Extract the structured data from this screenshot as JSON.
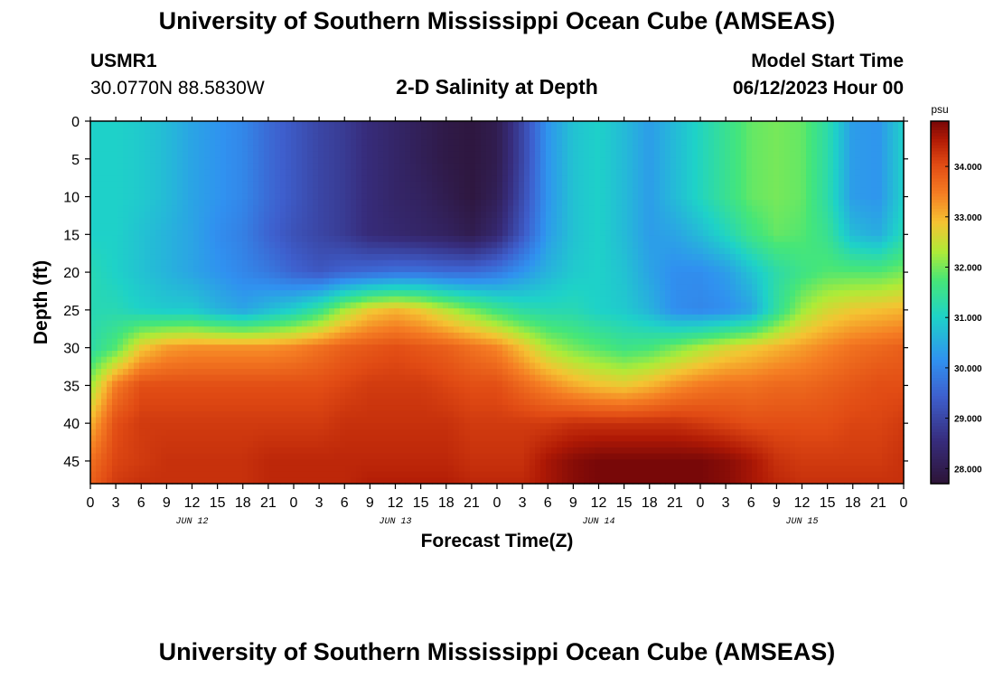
{
  "header": {
    "title": "University of Southern Mississippi Ocean Cube (AMSEAS)",
    "station_id": "USMR1",
    "coordinates": "30.0770N  88.5830W",
    "plot_title": "2-D Salinity at Depth",
    "model_start_label": "Model Start Time",
    "model_start_value": "06/12/2023 Hour 00"
  },
  "footer": {
    "title": "University of Southern Mississippi Ocean Cube (AMSEAS)"
  },
  "colors": {
    "background": "#ffffff",
    "axis": "#000000"
  },
  "chart_data": {
    "type": "heatmap",
    "title": "2-D Salinity at Depth",
    "xlabel": "Forecast Time(Z)",
    "ylabel": "Depth (ft)",
    "x_hours": [
      0,
      3,
      6,
      9,
      12,
      15,
      18,
      21,
      24,
      27,
      30,
      33,
      36,
      39,
      42,
      45,
      48,
      51,
      54,
      57,
      60,
      63,
      66,
      69,
      72,
      75,
      78,
      81,
      84,
      87,
      90,
      93,
      96
    ],
    "x_tick_labels": [
      "0",
      "3",
      "6",
      "9",
      "12",
      "15",
      "18",
      "21",
      "0",
      "3",
      "6",
      "9",
      "12",
      "15",
      "18",
      "21",
      "0",
      "3",
      "6",
      "9",
      "12",
      "15",
      "18",
      "21",
      "0",
      "3",
      "6",
      "9",
      "12",
      "15",
      "18",
      "21",
      "0"
    ],
    "date_labels": [
      {
        "text": "JUN 12",
        "hour": 12
      },
      {
        "text": "JUN 13",
        "hour": 36
      },
      {
        "text": "JUN 14",
        "hour": 60
      },
      {
        "text": "JUN 15",
        "hour": 84
      }
    ],
    "xlim": [
      0,
      96
    ],
    "ylim": [
      0,
      48
    ],
    "y_ticks": [
      0,
      5,
      10,
      15,
      20,
      25,
      30,
      35,
      40,
      45
    ],
    "y_tick_labels": [
      "0",
      "5",
      "10",
      "15",
      "20",
      "25",
      "30",
      "35",
      "40",
      "45"
    ],
    "depths_ft": [
      0,
      5,
      10,
      15,
      20,
      25,
      30,
      35,
      40,
      45,
      48
    ],
    "salinity_psu": [
      [
        31.0,
        31.0,
        31.0,
        31.0,
        31.2,
        31.2,
        31.3,
        32.2,
        33.0,
        33.6,
        33.8
      ],
      [
        31.0,
        31.0,
        31.0,
        31.0,
        31.0,
        31.2,
        31.8,
        33.5,
        34.0,
        34.1,
        34.2
      ],
      [
        30.9,
        30.9,
        30.9,
        30.8,
        30.8,
        31.0,
        32.8,
        34.0,
        34.2,
        34.2,
        34.3
      ],
      [
        30.7,
        30.7,
        30.7,
        30.6,
        30.6,
        30.9,
        33.2,
        34.0,
        34.2,
        34.3,
        34.3
      ],
      [
        30.4,
        30.4,
        30.4,
        30.4,
        30.4,
        30.9,
        33.3,
        34.0,
        34.2,
        34.3,
        34.3
      ],
      [
        30.2,
        30.2,
        30.2,
        30.1,
        30.2,
        30.6,
        33.3,
        34.0,
        34.2,
        34.3,
        34.3
      ],
      [
        30.0,
        30.0,
        30.0,
        29.9,
        30.0,
        30.4,
        33.3,
        34.0,
        34.2,
        34.3,
        34.3
      ],
      [
        29.6,
        29.6,
        29.6,
        29.5,
        29.8,
        30.7,
        33.3,
        34.0,
        34.2,
        34.4,
        34.4
      ],
      [
        29.3,
        29.3,
        29.3,
        29.2,
        29.5,
        31.0,
        33.4,
        34.0,
        34.2,
        34.4,
        34.4
      ],
      [
        29.0,
        29.0,
        29.0,
        29.0,
        29.3,
        31.5,
        33.6,
        34.0,
        34.2,
        34.4,
        34.4
      ],
      [
        28.8,
        28.8,
        28.8,
        28.8,
        29.5,
        32.3,
        33.8,
        34.1,
        34.3,
        34.4,
        34.4
      ],
      [
        28.5,
        28.5,
        28.5,
        28.5,
        29.6,
        32.8,
        33.9,
        34.2,
        34.3,
        34.4,
        34.5
      ],
      [
        28.3,
        28.3,
        28.3,
        28.4,
        29.7,
        33.0,
        34.0,
        34.2,
        34.3,
        34.4,
        34.5
      ],
      [
        28.1,
        28.1,
        28.2,
        28.3,
        29.7,
        32.8,
        33.9,
        34.2,
        34.3,
        34.4,
        34.5
      ],
      [
        27.9,
        27.9,
        28.0,
        28.2,
        29.6,
        32.4,
        33.8,
        34.1,
        34.3,
        34.4,
        34.5
      ],
      [
        27.8,
        27.8,
        27.8,
        28.0,
        29.6,
        32.0,
        33.6,
        34.0,
        34.2,
        34.3,
        34.4
      ],
      [
        28.0,
        28.0,
        28.1,
        28.4,
        29.8,
        31.6,
        33.4,
        34.0,
        34.2,
        34.3,
        34.4
      ],
      [
        29.0,
        29.0,
        29.1,
        29.3,
        30.2,
        31.3,
        32.9,
        33.7,
        34.2,
        34.3,
        34.4
      ],
      [
        30.2,
        30.2,
        30.2,
        30.3,
        30.6,
        31.2,
        32.3,
        33.4,
        34.2,
        34.6,
        34.6
      ],
      [
        30.8,
        30.8,
        30.8,
        30.8,
        30.9,
        31.2,
        32.0,
        33.1,
        34.3,
        34.8,
        34.8
      ],
      [
        31.0,
        31.0,
        31.0,
        31.0,
        31.0,
        31.0,
        31.8,
        32.9,
        34.3,
        34.9,
        34.9
      ],
      [
        30.7,
        30.7,
        30.7,
        30.7,
        30.8,
        30.9,
        31.6,
        32.8,
        34.3,
        34.9,
        34.9
      ],
      [
        30.3,
        30.3,
        30.3,
        30.3,
        30.4,
        30.6,
        31.7,
        33.0,
        34.3,
        34.9,
        34.9
      ],
      [
        30.7,
        30.7,
        30.7,
        30.4,
        30.1,
        30.1,
        32.0,
        33.3,
        34.3,
        34.9,
        34.9
      ],
      [
        31.1,
        31.1,
        31.1,
        30.7,
        30.1,
        30.0,
        32.3,
        33.5,
        34.2,
        34.9,
        34.9
      ],
      [
        31.5,
        31.5,
        31.5,
        31.1,
        30.3,
        30.1,
        32.6,
        33.6,
        34.1,
        34.8,
        34.8
      ],
      [
        31.9,
        31.9,
        31.9,
        31.6,
        30.8,
        30.4,
        32.8,
        33.6,
        34.0,
        34.6,
        34.6
      ],
      [
        32.0,
        32.0,
        32.0,
        31.9,
        31.3,
        31.4,
        33.0,
        33.7,
        34.0,
        34.3,
        34.4
      ],
      [
        31.9,
        31.9,
        31.9,
        31.8,
        31.6,
        32.2,
        33.2,
        33.7,
        34.0,
        34.2,
        34.3
      ],
      [
        31.3,
        31.3,
        31.3,
        31.5,
        31.8,
        32.6,
        33.4,
        33.8,
        34.0,
        34.2,
        34.3
      ],
      [
        30.3,
        30.3,
        30.3,
        30.7,
        31.8,
        32.8,
        33.6,
        33.9,
        34.1,
        34.2,
        34.3
      ],
      [
        30.2,
        30.2,
        30.2,
        30.5,
        31.8,
        32.9,
        33.7,
        34.0,
        34.1,
        34.2,
        34.3
      ],
      [
        31.0,
        31.0,
        31.0,
        31.2,
        32.0,
        33.0,
        33.8,
        34.0,
        34.2,
        34.3,
        34.3
      ]
    ],
    "colorbar": {
      "unit": "psu",
      "range": [
        27.7,
        34.9
      ],
      "ticks": [
        28.0,
        29.0,
        30.0,
        31.0,
        32.0,
        33.0,
        34.0
      ],
      "tick_labels": [
        "28.000",
        "29.000",
        "30.000",
        "31.000",
        "32.000",
        "33.000",
        "34.000"
      ]
    }
  }
}
